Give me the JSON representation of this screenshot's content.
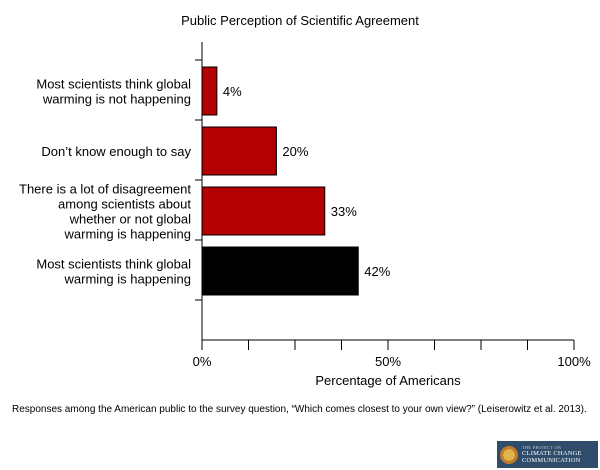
{
  "chart_data": {
    "type": "bar",
    "orientation": "horizontal",
    "title": "Public Perception of Scientific Agreement",
    "xlabel": "Percentage of Americans",
    "ylabel": "",
    "xlim": [
      0,
      100
    ],
    "x_ticks": [
      {
        "value": 0,
        "label": "0%"
      },
      {
        "value": 50,
        "label": "50%"
      },
      {
        "value": 100,
        "label": "100%"
      }
    ],
    "x_minor_ticks": [
      12.5,
      25,
      37.5,
      62.5,
      75,
      87.5
    ],
    "categories": [
      [
        "Most scientists think global",
        "warming is not happening"
      ],
      [
        "Don’t know enough to say"
      ],
      [
        "There is a lot of disagreement",
        "among scientists about",
        "whether or not global",
        "warming is happening"
      ],
      [
        "Most scientists think global",
        "warming is happening"
      ]
    ],
    "values": [
      4,
      20,
      33,
      42
    ],
    "value_labels": [
      "4%",
      "20%",
      "33%",
      "42%"
    ],
    "colors": [
      "#b30000",
      "#b30000",
      "#b30000",
      "#000000"
    ],
    "grid": false,
    "legend": "none"
  },
  "caption": "Responses among the American public to the survey question, “Which comes closest to your own view?” (Leiserowitz et al. 2013).",
  "logo": {
    "small_text": "THE PROJECT ON",
    "line1": "CLIMATE CHANGE",
    "line2": "COMMUNICATION"
  }
}
